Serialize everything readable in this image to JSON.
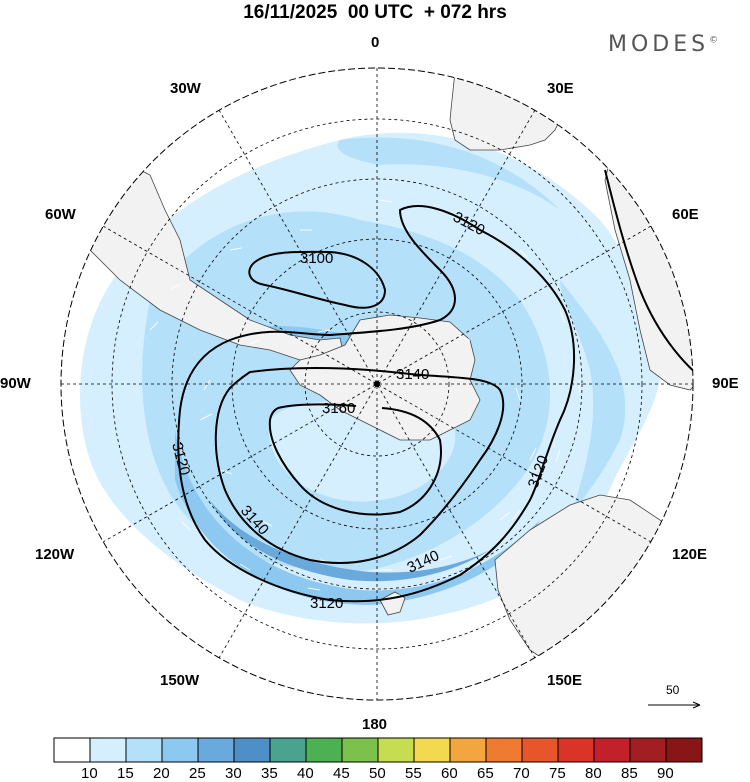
{
  "header": {
    "title": "16/11/2025  00 UTC  + 072 hrs",
    "brand": "MODES",
    "brand_mark": "©"
  },
  "longitude_labels": {
    "n0": "0",
    "n30w": "30W",
    "n30e": "30E",
    "n60w": "60W",
    "n60e": "60E",
    "n90w": "90W",
    "n90e": "90E",
    "n120w": "120W",
    "n120e": "120E",
    "n150w": "150W",
    "n150e": "150E",
    "n180": "180"
  },
  "contour_labels": {
    "c1": "3100",
    "c2": "3120",
    "c3": "3140",
    "c4": "3160",
    "c5": "3120",
    "c6": "3140",
    "c7": "3120",
    "c8": "3140",
    "c9": "3120"
  },
  "vector_reference": {
    "value": "50"
  },
  "colorbar": {
    "levels": [
      "10",
      "15",
      "20",
      "25",
      "30",
      "35",
      "40",
      "45",
      "50",
      "55",
      "60",
      "65",
      "70",
      "75",
      "80",
      "85",
      "90"
    ],
    "colors": [
      "#ffffff",
      "#d5efff",
      "#b4e0fa",
      "#8cc8ef",
      "#6aa9dc",
      "#4f8fc7",
      "#4aa38f",
      "#4cb153",
      "#7cc14b",
      "#c6dd52",
      "#f2d950",
      "#f3a640",
      "#ef7a31",
      "#e7552b",
      "#da3328",
      "#c2202a",
      "#a11e22",
      "#881616"
    ]
  }
}
